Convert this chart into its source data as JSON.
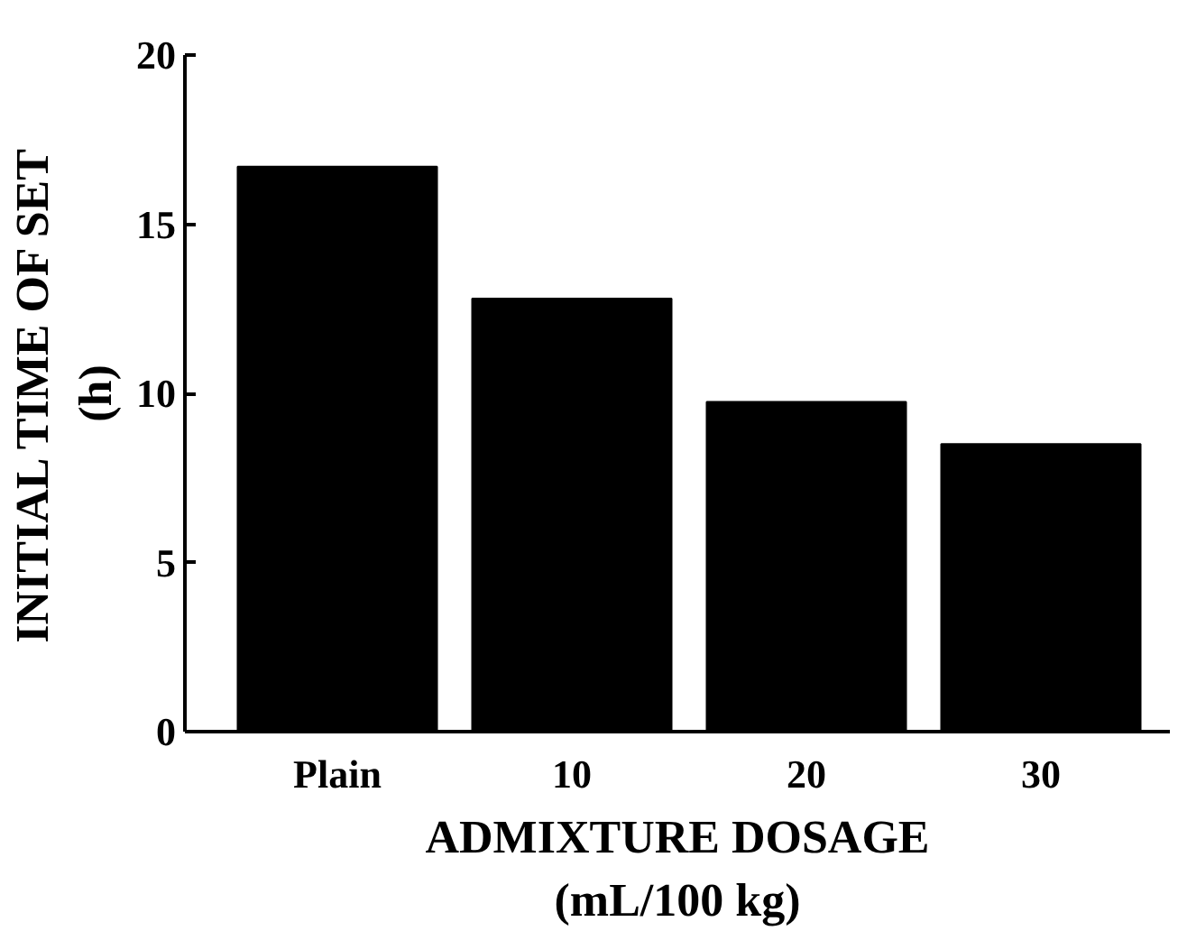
{
  "chart_data": {
    "type": "bar",
    "xlabel": "ADMIXTURE DOSAGE\n(mL/100 kg)",
    "ylabel": "INITIAL TIME OF SET\n(h)",
    "categories": [
      "Plain",
      "10",
      "20",
      "30"
    ],
    "values": [
      16.7,
      12.8,
      9.75,
      8.5
    ],
    "color": "#000000",
    "ylim": [
      0,
      20
    ],
    "yticks": [
      0,
      5,
      10,
      15,
      20
    ],
    "grid": false
  }
}
